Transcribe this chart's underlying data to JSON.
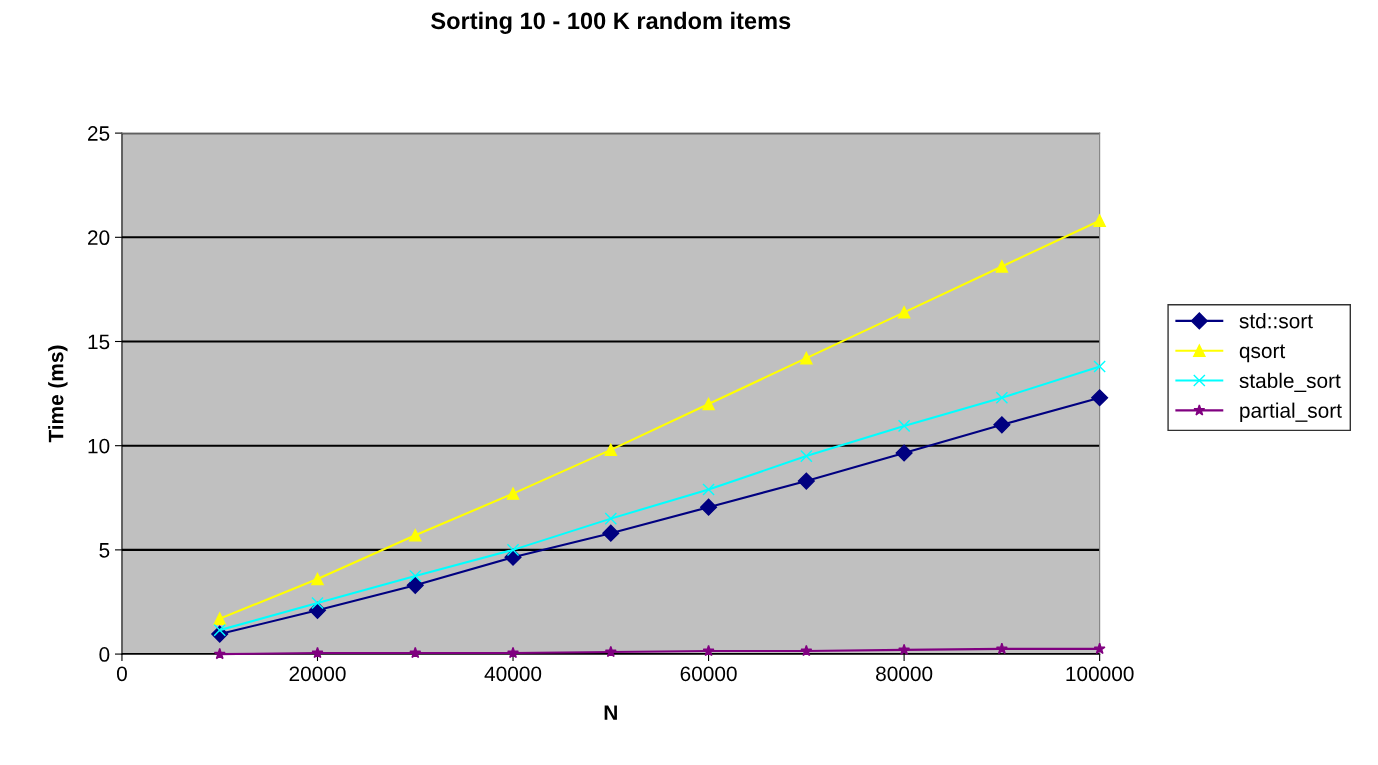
{
  "chart_data": {
    "type": "line",
    "title": "Sorting 10 - 100 K random items",
    "xlabel": "N",
    "ylabel": "Time (ms)",
    "x": [
      10000,
      20000,
      30000,
      40000,
      50000,
      60000,
      70000,
      80000,
      90000,
      100000
    ],
    "series": [
      {
        "name": "std::sort",
        "color": "#000080",
        "marker": "diamond",
        "values": [
          0.96,
          2.1,
          3.3,
          4.65,
          5.8,
          7.05,
          8.3,
          9.65,
          11.0,
          12.3
        ]
      },
      {
        "name": "qsort",
        "color": "#ffff00",
        "marker": "triangle",
        "values": [
          1.7,
          3.6,
          5.7,
          7.7,
          9.8,
          12.0,
          14.2,
          16.4,
          18.6,
          20.8
        ]
      },
      {
        "name": "stable_sort",
        "color": "#00ffff",
        "marker": "cross",
        "values": [
          1.15,
          2.45,
          3.75,
          5.0,
          6.5,
          7.9,
          9.5,
          10.95,
          12.3,
          13.8
        ]
      },
      {
        "name": "partial_sort",
        "color": "#800080",
        "marker": "star",
        "values": [
          0.0,
          0.05,
          0.05,
          0.05,
          0.1,
          0.15,
          0.15,
          0.2,
          0.25,
          0.25
        ]
      }
    ],
    "xlim": [
      0,
      100000
    ],
    "xticks": [
      0,
      20000,
      40000,
      60000,
      80000,
      100000
    ],
    "ylim": [
      0,
      25
    ],
    "yticks": [
      0,
      5,
      10,
      15,
      20,
      25
    ],
    "grid": "y",
    "legend": "right",
    "line_style": "solid"
  }
}
